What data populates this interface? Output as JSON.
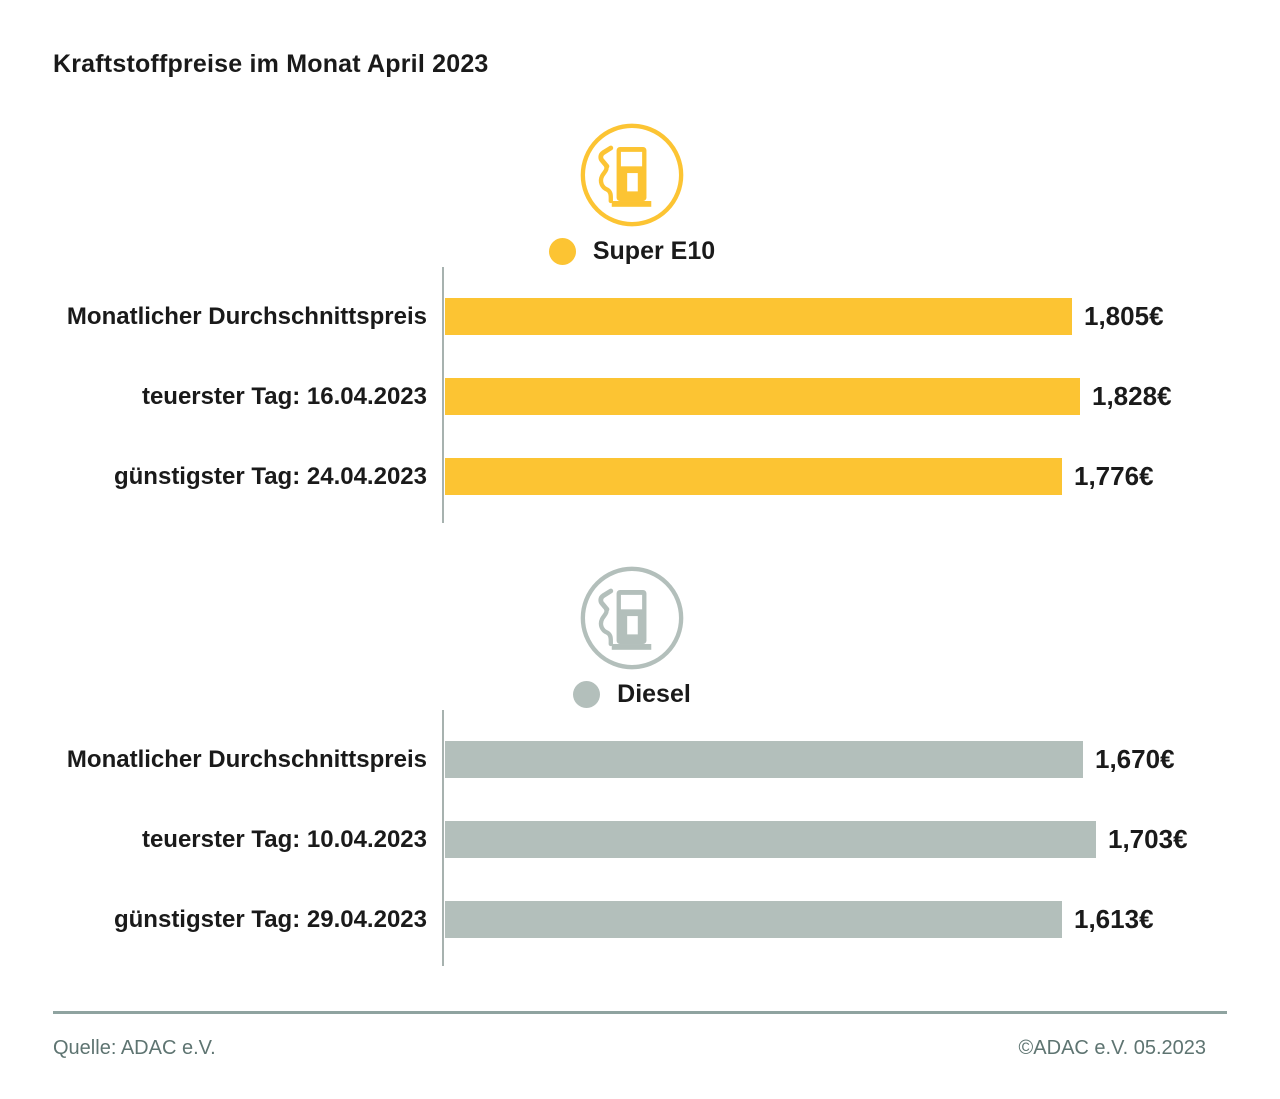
{
  "title": "Kraftstoffpreise im Monat April 2023",
  "sections": [
    {
      "icon": "fuel-pump-icon",
      "legend_label": "Super E10",
      "rows": [
        {
          "label": "Monatlicher Durchschnittspreis",
          "value_label": "1,805€"
        },
        {
          "label": "teuerster Tag: 16.04.2023",
          "value_label": "1,828€"
        },
        {
          "label": "günstigster Tag: 24.04.2023",
          "value_label": "1,776€"
        }
      ]
    },
    {
      "icon": "fuel-pump-icon",
      "legend_label": "Diesel",
      "rows": [
        {
          "label": "Monatlicher Durchschnittspreis",
          "value_label": "1,670€"
        },
        {
          "label": "teuerster Tag: 10.04.2023",
          "value_label": "1,703€"
        },
        {
          "label": "günstigster Tag: 29.04.2023",
          "value_label": "1,613€"
        }
      ]
    }
  ],
  "chart_data": [
    {
      "type": "bar",
      "orientation": "horizontal",
      "title": "Super E10",
      "legend_position": "top",
      "grid": false,
      "color": "#FCC433",
      "categories": [
        "Monatlicher Durchschnittspreis",
        "teuerster Tag: 16.04.2023",
        "günstigster Tag: 24.04.2023"
      ],
      "values": [
        1.805,
        1.828,
        1.776
      ],
      "value_labels": [
        "1,805€",
        "1,828€",
        "1,776€"
      ],
      "unit": "€"
    },
    {
      "type": "bar",
      "orientation": "horizontal",
      "title": "Diesel",
      "legend_position": "top",
      "grid": false,
      "color": "#B3BFBB",
      "categories": [
        "Monatlicher Durchschnittspreis",
        "teuerster Tag: 10.04.2023",
        "günstigster Tag: 29.04.2023"
      ],
      "values": [
        1.67,
        1.703,
        1.613
      ],
      "value_labels": [
        "1,670€",
        "1,703€",
        "1,613€"
      ],
      "unit": "€"
    }
  ],
  "footer": {
    "source": "Quelle: ADAC e.V.",
    "copyright": "©ADAC e.V. 05.2023"
  },
  "colors": {
    "super_e10": "#FCC433",
    "diesel": "#B3BFBB",
    "text": "#1A1A1A",
    "footer_text": "#5E7471",
    "axis_line": "#A7B2AF",
    "divider": "#8FA3A0"
  }
}
